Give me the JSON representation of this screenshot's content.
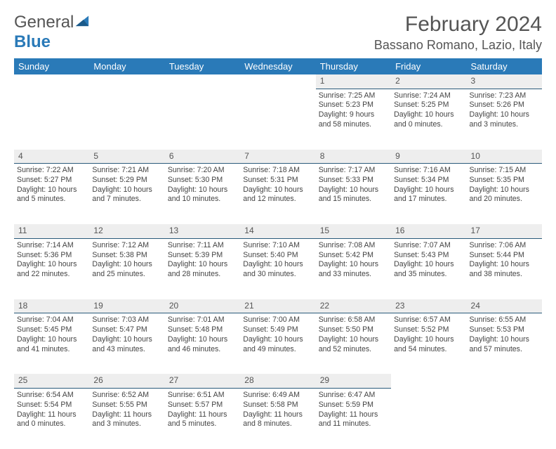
{
  "logo": {
    "word1": "General",
    "word2": "Blue"
  },
  "title": "February 2024",
  "location": "Bassano Romano, Lazio, Italy",
  "colors": {
    "header_bg": "#2a7ab8",
    "header_text": "#ffffff",
    "daynum_bg": "#eeeeee",
    "daynum_border": "#2a5a7a",
    "text": "#444444",
    "page_bg": "#ffffff"
  },
  "daysOfWeek": [
    "Sunday",
    "Monday",
    "Tuesday",
    "Wednesday",
    "Thursday",
    "Friday",
    "Saturday"
  ],
  "weeks": [
    [
      null,
      null,
      null,
      null,
      {
        "n": "1",
        "sunrise": "7:25 AM",
        "sunset": "5:23 PM",
        "daylight": "9 hours and 58 minutes."
      },
      {
        "n": "2",
        "sunrise": "7:24 AM",
        "sunset": "5:25 PM",
        "daylight": "10 hours and 0 minutes."
      },
      {
        "n": "3",
        "sunrise": "7:23 AM",
        "sunset": "5:26 PM",
        "daylight": "10 hours and 3 minutes."
      }
    ],
    [
      {
        "n": "4",
        "sunrise": "7:22 AM",
        "sunset": "5:27 PM",
        "daylight": "10 hours and 5 minutes."
      },
      {
        "n": "5",
        "sunrise": "7:21 AM",
        "sunset": "5:29 PM",
        "daylight": "10 hours and 7 minutes."
      },
      {
        "n": "6",
        "sunrise": "7:20 AM",
        "sunset": "5:30 PM",
        "daylight": "10 hours and 10 minutes."
      },
      {
        "n": "7",
        "sunrise": "7:18 AM",
        "sunset": "5:31 PM",
        "daylight": "10 hours and 12 minutes."
      },
      {
        "n": "8",
        "sunrise": "7:17 AM",
        "sunset": "5:33 PM",
        "daylight": "10 hours and 15 minutes."
      },
      {
        "n": "9",
        "sunrise": "7:16 AM",
        "sunset": "5:34 PM",
        "daylight": "10 hours and 17 minutes."
      },
      {
        "n": "10",
        "sunrise": "7:15 AM",
        "sunset": "5:35 PM",
        "daylight": "10 hours and 20 minutes."
      }
    ],
    [
      {
        "n": "11",
        "sunrise": "7:14 AM",
        "sunset": "5:36 PM",
        "daylight": "10 hours and 22 minutes."
      },
      {
        "n": "12",
        "sunrise": "7:12 AM",
        "sunset": "5:38 PM",
        "daylight": "10 hours and 25 minutes."
      },
      {
        "n": "13",
        "sunrise": "7:11 AM",
        "sunset": "5:39 PM",
        "daylight": "10 hours and 28 minutes."
      },
      {
        "n": "14",
        "sunrise": "7:10 AM",
        "sunset": "5:40 PM",
        "daylight": "10 hours and 30 minutes."
      },
      {
        "n": "15",
        "sunrise": "7:08 AM",
        "sunset": "5:42 PM",
        "daylight": "10 hours and 33 minutes."
      },
      {
        "n": "16",
        "sunrise": "7:07 AM",
        "sunset": "5:43 PM",
        "daylight": "10 hours and 35 minutes."
      },
      {
        "n": "17",
        "sunrise": "7:06 AM",
        "sunset": "5:44 PM",
        "daylight": "10 hours and 38 minutes."
      }
    ],
    [
      {
        "n": "18",
        "sunrise": "7:04 AM",
        "sunset": "5:45 PM",
        "daylight": "10 hours and 41 minutes."
      },
      {
        "n": "19",
        "sunrise": "7:03 AM",
        "sunset": "5:47 PM",
        "daylight": "10 hours and 43 minutes."
      },
      {
        "n": "20",
        "sunrise": "7:01 AM",
        "sunset": "5:48 PM",
        "daylight": "10 hours and 46 minutes."
      },
      {
        "n": "21",
        "sunrise": "7:00 AM",
        "sunset": "5:49 PM",
        "daylight": "10 hours and 49 minutes."
      },
      {
        "n": "22",
        "sunrise": "6:58 AM",
        "sunset": "5:50 PM",
        "daylight": "10 hours and 52 minutes."
      },
      {
        "n": "23",
        "sunrise": "6:57 AM",
        "sunset": "5:52 PM",
        "daylight": "10 hours and 54 minutes."
      },
      {
        "n": "24",
        "sunrise": "6:55 AM",
        "sunset": "5:53 PM",
        "daylight": "10 hours and 57 minutes."
      }
    ],
    [
      {
        "n": "25",
        "sunrise": "6:54 AM",
        "sunset": "5:54 PM",
        "daylight": "11 hours and 0 minutes."
      },
      {
        "n": "26",
        "sunrise": "6:52 AM",
        "sunset": "5:55 PM",
        "daylight": "11 hours and 3 minutes."
      },
      {
        "n": "27",
        "sunrise": "6:51 AM",
        "sunset": "5:57 PM",
        "daylight": "11 hours and 5 minutes."
      },
      {
        "n": "28",
        "sunrise": "6:49 AM",
        "sunset": "5:58 PM",
        "daylight": "11 hours and 8 minutes."
      },
      {
        "n": "29",
        "sunrise": "6:47 AM",
        "sunset": "5:59 PM",
        "daylight": "11 hours and 11 minutes."
      },
      null,
      null
    ]
  ],
  "labels": {
    "sunrise": "Sunrise:",
    "sunset": "Sunset:",
    "daylight": "Daylight:"
  }
}
